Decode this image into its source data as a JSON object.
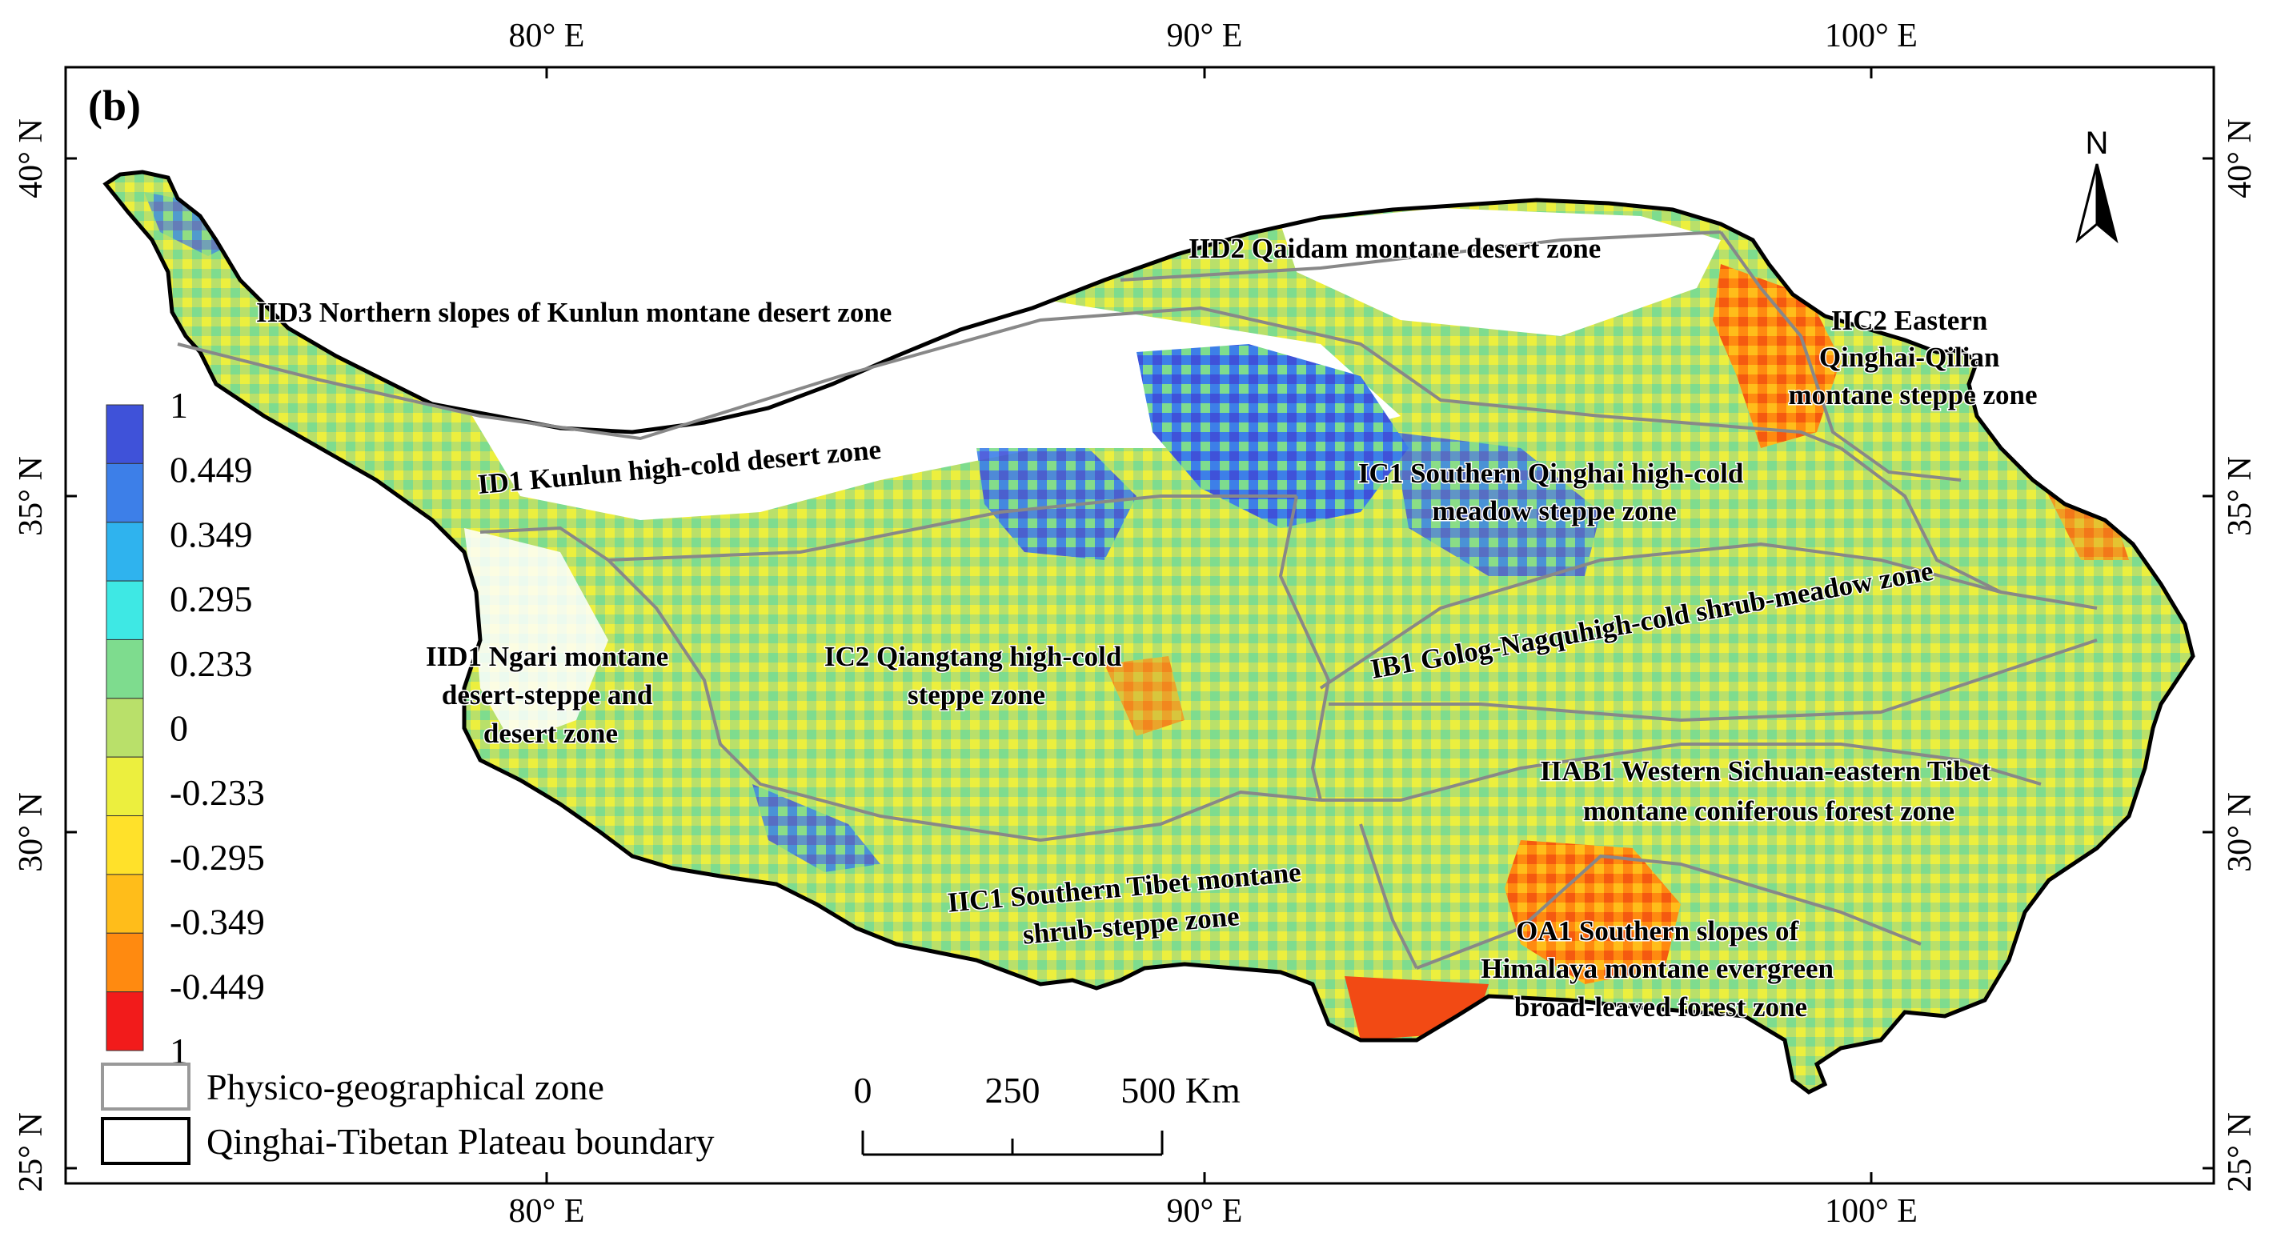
{
  "panel_label": "(b)",
  "north_label": "N",
  "longitude_labels": [
    "80° E",
    "90° E",
    "100° E"
  ],
  "latitude_labels": [
    "40° N",
    "35° N",
    "30° N",
    "25° N"
  ],
  "colorbar": {
    "labels": [
      "1",
      "0.449",
      "0.349",
      "0.295",
      "0.233",
      "0",
      "-0.233",
      "-0.295",
      "-0.349",
      "-0.449",
      "1"
    ],
    "colors": [
      "#3f52d9",
      "#3d7fe8",
      "#2fb3ee",
      "#3ee8e4",
      "#7edc8e",
      "#b9e06a",
      "#ecef3e",
      "#ffe12a",
      "#ffbd1a",
      "#ff8a10",
      "#f21b1b"
    ]
  },
  "zones": [
    {
      "id": "IID3",
      "text": "IID3 Northern slopes of Kunlun montane desert zone"
    },
    {
      "id": "IID2",
      "text": "IID2 Qaidam montane desert zone"
    },
    {
      "id": "IIC2",
      "lines": [
        "IIC2 Eastern",
        "Qinghai-Qilian",
        "montane steppe zone"
      ]
    },
    {
      "id": "ID1",
      "text": "ID1 Kunlun high-cold desert zone"
    },
    {
      "id": "IC1",
      "lines": [
        "IC1 Southern Qinghai high-cold",
        "meadow steppe zone"
      ]
    },
    {
      "id": "IB1",
      "text": "IB1 Golog-Nagquhigh-cold shrub-meadow zone"
    },
    {
      "id": "IID1",
      "lines": [
        "IID1 Ngari montane",
        "desert-steppe and",
        "desert zone"
      ]
    },
    {
      "id": "IC2",
      "lines": [
        "IC2 Qiangtang high-cold",
        "steppe zone"
      ]
    },
    {
      "id": "IIAB1",
      "lines": [
        "IIAB1 Western Sichuan-eastern Tibet",
        "montane coniferous forest zone"
      ]
    },
    {
      "id": "IIC1",
      "lines": [
        "IIC1 Southern Tibet montane",
        "shrub-steppe zone"
      ]
    },
    {
      "id": "OA1",
      "lines": [
        "OA1 Southern slopes of",
        "Himalaya montane evergreen",
        "broad-leaved forest zone"
      ]
    }
  ],
  "legend": {
    "zone_label": "Physico-geographical zone",
    "boundary_label": "Qinghai-Tibetan Plateau boundary"
  },
  "scalebar": {
    "ticks": [
      "0",
      "250",
      "500 Km"
    ]
  }
}
